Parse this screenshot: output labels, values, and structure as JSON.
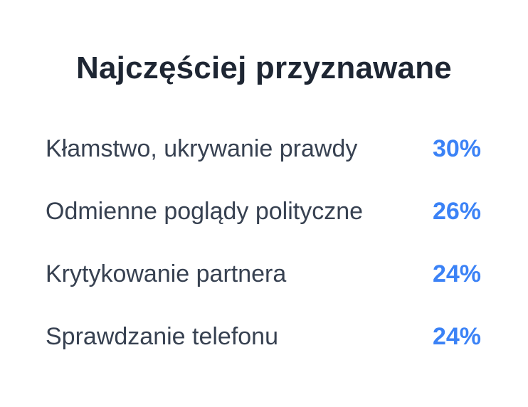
{
  "title": "Najczęściej przyznawane",
  "accent_color": "#3b82f6",
  "items": [
    {
      "label": "Kłamstwo, ukrywanie prawdy",
      "value": "30%"
    },
    {
      "label": "Odmienne poglądy polityczne",
      "value": "26%"
    },
    {
      "label": "Krytykowanie partnera",
      "value": "24%"
    },
    {
      "label": "Sprawdzanie telefonu",
      "value": "24%"
    }
  ]
}
